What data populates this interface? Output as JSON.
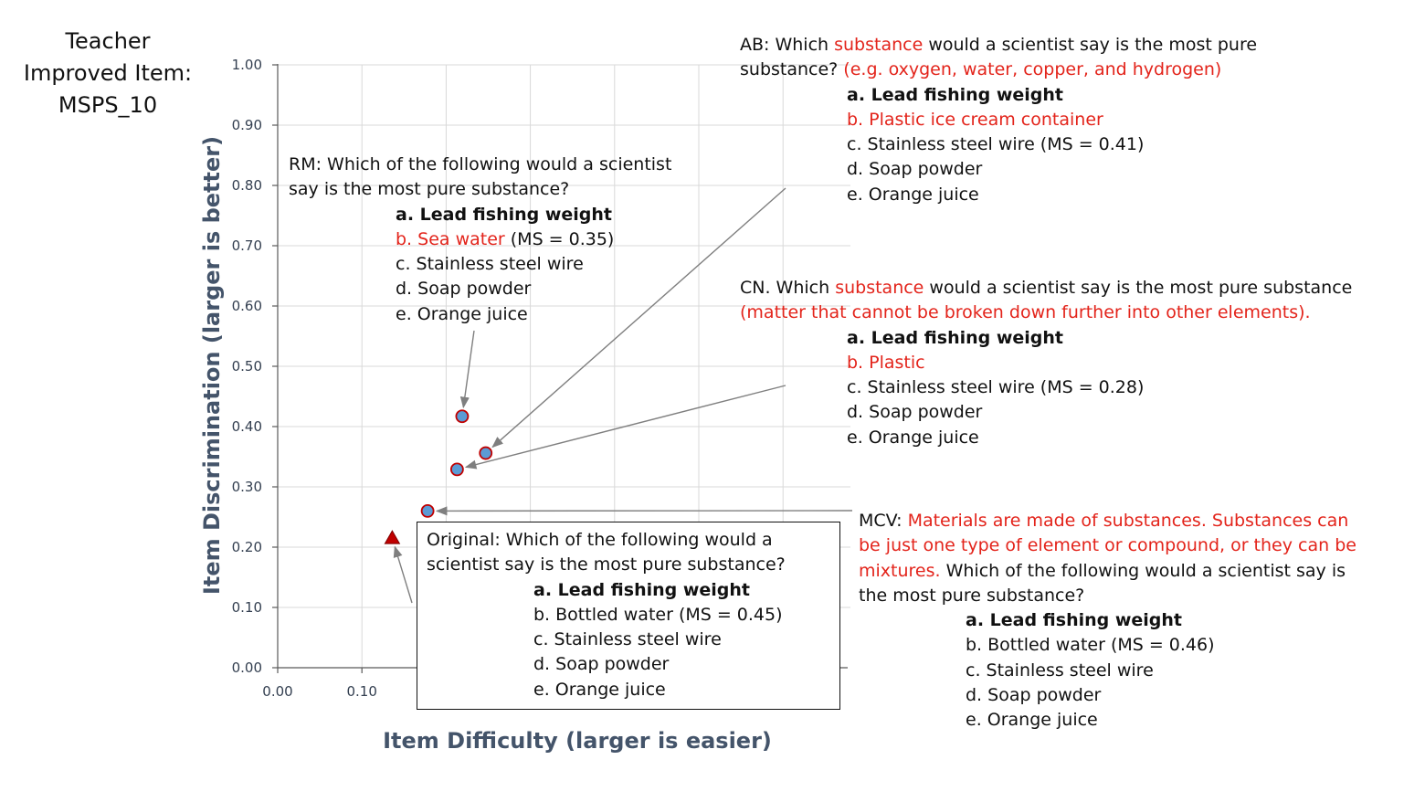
{
  "title_lines": [
    "Teacher",
    "Improved Item:",
    "MSPS_10"
  ],
  "chart_data": {
    "type": "scatter",
    "xlabel": "Item Difficulty (larger is easier)",
    "ylabel": "Item Discrimination (larger is better)",
    "xlim": [
      0,
      0.7
    ],
    "ylim": [
      0,
      1.0
    ],
    "x_ticks": [
      "0.00",
      "0.10"
    ],
    "y_ticks": [
      "0.00",
      "0.10",
      "0.20",
      "0.30",
      "0.40",
      "0.50",
      "0.60",
      "0.70",
      "0.80",
      "0.90",
      "1.00"
    ],
    "grid": true,
    "points": [
      {
        "label": "Original",
        "marker": "triangle",
        "x": 0.136,
        "y": 0.215
      },
      {
        "label": "MCV",
        "marker": "circle",
        "x": 0.178,
        "y": 0.26
      },
      {
        "label": "CN",
        "marker": "circle",
        "x": 0.213,
        "y": 0.329
      },
      {
        "label": "RM",
        "marker": "circle",
        "x": 0.219,
        "y": 0.417
      },
      {
        "label": "AB",
        "marker": "circle",
        "x": 0.247,
        "y": 0.356
      }
    ],
    "colors": {
      "circle_fill": "#5b9bd5",
      "circle_edge": "#c00000",
      "triangle_fill": "#c00000",
      "grid": "#d9d9d9",
      "axis": "#595959",
      "arrow": "#7f7f7f"
    }
  },
  "callouts": {
    "rm": {
      "stem": [
        "RM: Which of the following would a scientist",
        "say is the most pure substance?"
      ],
      "a": "a. Lead fishing weight",
      "b_red": "b. Sea water",
      "b_rest": " (MS = 0.35)",
      "c": "c. Stainless steel wire",
      "d": "d. Soap powder",
      "e": "e. Orange juice"
    },
    "ab": {
      "l1_a": "AB: Which ",
      "l1_red": "substance",
      "l1_b": " would a scientist say is the most pure",
      "l2_a": "substance? ",
      "l2_red": "(e.g. oxygen, water, copper, and hydrogen)",
      "a": "a. Lead fishing weight",
      "b": "b. Plastic ice cream container",
      "c": "c. Stainless steel wire (MS = 0.41)",
      "d": "d. Soap powder",
      "e": "e. Orange juice"
    },
    "cn": {
      "l1_a": "CN. Which ",
      "l1_red": "substance",
      "l1_b": " would a scientist say is the most pure substance",
      "l2_red": "(matter that cannot be broken down further into other elements).",
      "a": "a. Lead fishing weight",
      "b": "b. Plastic",
      "c": "c. Stainless steel wire (MS = 0.28)",
      "d": "d. Soap powder",
      "e": "e. Orange juice"
    },
    "mcv": {
      "l1_a": "MCV: ",
      "l1_red": "Materials are made of substances. Substances can",
      "l2_red": "be just one type of element or compound, or they can be",
      "l3_red": "mixtures.",
      "l3_b": " Which of the following would a scientist say is",
      "l4": "the most pure substance?",
      "a": "a. Lead fishing weight",
      "b": "b. Bottled water (MS = 0.46)",
      "c": "c. Stainless steel wire",
      "d": "d. Soap powder",
      "e": "e. Orange juice"
    },
    "original": {
      "stem": [
        "Original: Which of the following would a",
        "scientist say is the most pure substance?"
      ],
      "a": "a. Lead fishing weight",
      "b": "b. Bottled water (MS = 0.45)",
      "c": "c. Stainless steel wire",
      "d": "d. Soap powder",
      "e": "e. Orange juice"
    }
  }
}
